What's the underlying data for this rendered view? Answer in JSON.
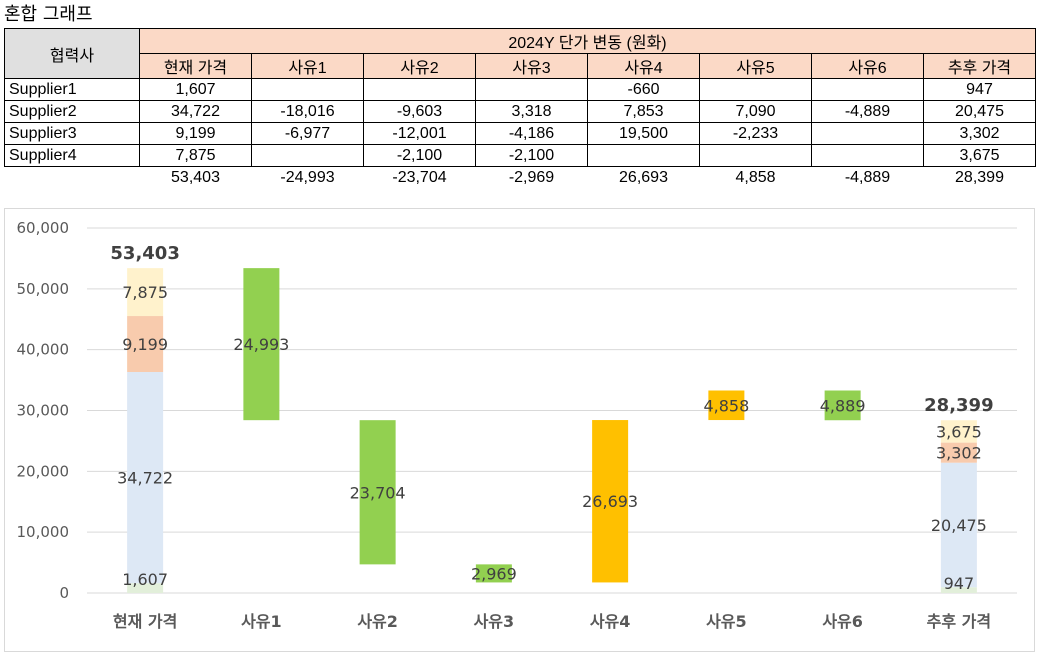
{
  "page": {
    "title": "혼합 그래프"
  },
  "table": {
    "company_header": "협력사",
    "group_header": "2024Y 단가 변동 (원화)",
    "columns": [
      "현재 가격",
      "사유1",
      "사유2",
      "사유3",
      "사유4",
      "사유5",
      "사유6",
      "추후 가격"
    ],
    "rows": [
      {
        "name": "Supplier1",
        "cells": [
          "1,607",
          "",
          "",
          "",
          "-660",
          "",
          "",
          "947"
        ]
      },
      {
        "name": "Supplier2",
        "cells": [
          "34,722",
          "-18,016",
          "-9,603",
          "3,318",
          "7,853",
          "7,090",
          "-4,889",
          "20,475"
        ]
      },
      {
        "name": "Supplier3",
        "cells": [
          "9,199",
          "-6,977",
          "-12,001",
          "-4,186",
          "19,500",
          "-2,233",
          "",
          "3,302"
        ]
      },
      {
        "name": "Supplier4",
        "cells": [
          "7,875",
          "",
          "-2,100",
          "-2,100",
          "",
          "",
          "",
          "3,675"
        ]
      }
    ],
    "totals": [
      "53,403",
      "-24,993",
      "-23,704",
      "-2,969",
      "26,693",
      "4,858",
      "-4,889",
      "28,399"
    ]
  },
  "chart_data": {
    "type": "bar",
    "subtype": "stacked-waterfall",
    "categories": [
      "현재 가격",
      "사유1",
      "사유2",
      "사유3",
      "사유4",
      "사유5",
      "사유6",
      "추후 가격"
    ],
    "ylim": [
      0,
      60000
    ],
    "yticks": [
      0,
      10000,
      20000,
      30000,
      40000,
      50000,
      60000
    ],
    "ytick_labels": [
      "0",
      "10,000",
      "20,000",
      "30,000",
      "40,000",
      "50,000",
      "60,000"
    ],
    "grid": true,
    "colors": {
      "supplier1": "#e2efda",
      "supplier2": "#dde8f5",
      "supplier3": "#f8cbad",
      "supplier4": "#fff2cc",
      "decrease": "#92d050",
      "increase": "#ffc000"
    },
    "stacks": [
      {
        "category": "현재 가격",
        "total_label": "53,403",
        "segments": [
          {
            "name": "Supplier1",
            "from": 0,
            "to": 1607,
            "label": "1,607",
            "color_key": "supplier1"
          },
          {
            "name": "Supplier2",
            "from": 1607,
            "to": 36329,
            "label": "34,722",
            "color_key": "supplier2"
          },
          {
            "name": "Supplier3",
            "from": 36329,
            "to": 45528,
            "label": "9,199",
            "color_key": "supplier3"
          },
          {
            "name": "Supplier4",
            "from": 45528,
            "to": 53403,
            "label": "7,875",
            "color_key": "supplier4"
          }
        ]
      },
      {
        "category": "추후 가격",
        "total_label": "28,399",
        "segments": [
          {
            "name": "Supplier1",
            "from": 0,
            "to": 947,
            "label": "947",
            "color_key": "supplier1"
          },
          {
            "name": "Supplier2",
            "from": 947,
            "to": 21422,
            "label": "20,475",
            "color_key": "supplier2"
          },
          {
            "name": "Supplier3",
            "from": 21422,
            "to": 24724,
            "label": "3,302",
            "color_key": "supplier3"
          },
          {
            "name": "Supplier4",
            "from": 24724,
            "to": 28399,
            "label": "3,675",
            "color_key": "supplier4"
          }
        ]
      }
    ],
    "floating": [
      {
        "category": "사유1",
        "from": 28410,
        "to": 53403,
        "label": "24,993",
        "color_key": "decrease"
      },
      {
        "category": "사유2",
        "from": 4706,
        "to": 28410,
        "label": "23,704",
        "color_key": "decrease"
      },
      {
        "category": "사유3",
        "from": 1737,
        "to": 4706,
        "label": "2,969",
        "color_key": "decrease"
      },
      {
        "category": "사유4",
        "from": 1737,
        "to": 28430,
        "label": "26,693",
        "color_key": "increase"
      },
      {
        "category": "사유5",
        "from": 28430,
        "to": 33288,
        "label": "4,858",
        "color_key": "increase"
      },
      {
        "category": "사유6",
        "from": 28399,
        "to": 33288,
        "label": "4,889",
        "color_key": "decrease"
      }
    ]
  }
}
